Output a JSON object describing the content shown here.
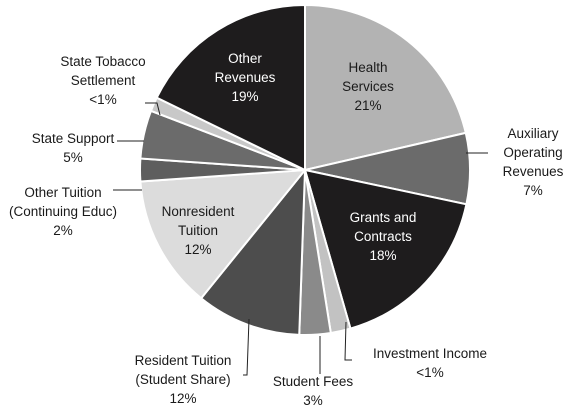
{
  "chart_data": {
    "type": "pie",
    "slices": [
      {
        "lines": [
          "Health",
          "Services",
          "21%"
        ],
        "value": 21,
        "color": "#b3b3b3",
        "text_color": "#1a1a1a"
      },
      {
        "lines": [
          "Auxiliary",
          "Operating",
          "Revenues",
          "7%"
        ],
        "value": 7,
        "color": "#6b6b6b",
        "text_color": "#1a1a1a"
      },
      {
        "lines": [
          "Grants and",
          "Contracts",
          "18%"
        ],
        "value": 18,
        "color": "#1e1c1d",
        "text_color": "#ffffff"
      },
      {
        "lines": [
          "Investment Income",
          "<1%"
        ],
        "value": 1,
        "color": "#c2c2c2",
        "text_color": "#1a1a1a"
      },
      {
        "lines": [
          "Student Fees",
          "3%"
        ],
        "value": 3,
        "color": "#8a8a8a",
        "text_color": "#1a1a1a"
      },
      {
        "lines": [
          "Resident Tuition",
          "(Student Share)",
          "12%"
        ],
        "value": 12,
        "color": "#4d4d4d",
        "text_color": "#1a1a1a"
      },
      {
        "lines": [
          "Nonresident",
          "Tuition",
          "12%"
        ],
        "value": 12,
        "color": "#dcdcdc",
        "text_color": "#1a1a1a"
      },
      {
        "lines": [
          "Other Tuition",
          "(Continuing Educ)",
          "2%"
        ],
        "value": 2,
        "color": "#5e5e5e",
        "text_color": "#1a1a1a"
      },
      {
        "lines": [
          "State Support",
          "5%"
        ],
        "value": 5,
        "color": "#6b6b6b",
        "text_color": "#1a1a1a"
      },
      {
        "lines": [
          "State Tobacco",
          "Settlement",
          "<1%"
        ],
        "value": 1,
        "color": "#c8c8c8",
        "text_color": "#1a1a1a"
      },
      {
        "lines": [
          "Other",
          "Revenues",
          "19%"
        ],
        "value": 19,
        "color": "#1e1c1d",
        "text_color": "#ffffff"
      }
    ]
  }
}
